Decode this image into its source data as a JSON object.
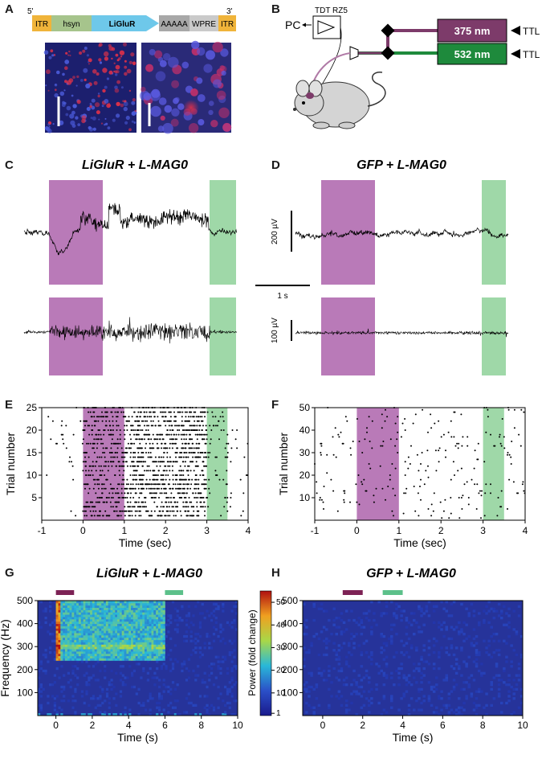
{
  "panel_labels": [
    "A",
    "B",
    "C",
    "D",
    "E",
    "F",
    "G",
    "H"
  ],
  "panel_a": {
    "construct": {
      "five_prime": "5'",
      "three_prime": "3'",
      "segments": [
        "ITR",
        "hsyn",
        "LiGluR",
        "AAAAA",
        "WPRE",
        "ITR"
      ]
    }
  },
  "panel_b": {
    "recorder_label": "TDT RZ5",
    "pc_label": "PC",
    "laser_violet": "375 nm",
    "laser_green": "532 nm",
    "trigger_label": "TTL",
    "colors": {
      "violet": "#7d3b6a",
      "green": "#1e8a3c"
    }
  },
  "panel_c": {
    "title": "LiGluR + L-MAG0"
  },
  "panel_d": {
    "title": "GFP + L-MAG0"
  },
  "scalebars": {
    "upper": "200 µV",
    "lower": "100 µV",
    "time": "1 s"
  },
  "chart_data": [
    {
      "id": "E",
      "type": "scatter",
      "title": "",
      "xlabel": "Time (sec)",
      "ylabel": "Trial number",
      "xlim": [
        -1,
        4
      ],
      "ylim": [
        0,
        25
      ],
      "xticks": [
        "-1",
        "0",
        "1",
        "2",
        "3",
        "4"
      ],
      "yticks": [
        "5",
        "10",
        "15",
        "20",
        "25"
      ],
      "xtick_values": [
        -1,
        0,
        1,
        2,
        3,
        4
      ],
      "ytick_values": [
        5,
        10,
        15,
        20,
        25
      ],
      "violet_window": [
        0,
        1
      ],
      "green_window": [
        3,
        3.5
      ],
      "trials": 25,
      "rates_hz": {
        "baseline": 1.2,
        "violet": 14,
        "after": 20,
        "green": 3,
        "post": 1.2
      }
    },
    {
      "id": "F",
      "type": "scatter",
      "title": "",
      "xlabel": "Time (sec)",
      "ylabel": "Trial number",
      "xlim": [
        -1,
        4
      ],
      "ylim": [
        0,
        50
      ],
      "xticks": [
        "-1",
        "0",
        "1",
        "2",
        "3",
        "4"
      ],
      "yticks": [
        "10",
        "20",
        "30",
        "40",
        "50"
      ],
      "xtick_values": [
        -1,
        0,
        1,
        2,
        3,
        4
      ],
      "ytick_values": [
        10,
        20,
        30,
        40,
        50
      ],
      "violet_window": [
        0,
        1
      ],
      "green_window": [
        3,
        3.5
      ],
      "trials": 50,
      "rates_hz": {
        "baseline": 1.0,
        "violet": 1.0,
        "after": 1.0,
        "green": 1.0,
        "post": 1.0
      }
    },
    {
      "id": "G",
      "type": "heatmap",
      "title": "LiGluR + L-MAG0",
      "xlabel": "Time (s)",
      "ylabel": "Frequency (Hz)",
      "xlim": [
        -1,
        10
      ],
      "ylim": [
        0,
        500
      ],
      "xticks": [
        "0",
        "2",
        "4",
        "6",
        "8",
        "10"
      ],
      "yticks": [
        "100",
        "200",
        "300",
        "400",
        "500"
      ],
      "xtick_values": [
        0,
        2,
        4,
        6,
        8,
        10
      ],
      "ytick_values": [
        100,
        200,
        300,
        400,
        500
      ],
      "violet_bar": [
        0,
        1
      ],
      "green_bar": [
        6,
        7
      ],
      "elevated_window": [
        0,
        6
      ],
      "elevated_band_hz": [
        240,
        500
      ],
      "colorbar": {
        "label": "Power (fold change)",
        "ticks": [
          "1",
          "10",
          "20",
          "30",
          "40",
          "50"
        ],
        "tick_values": [
          1,
          10,
          20,
          30,
          40,
          50
        ]
      }
    },
    {
      "id": "H",
      "type": "heatmap",
      "title": "GFP + L-MAG0",
      "xlabel": "Time (s)",
      "ylabel": "",
      "xlim": [
        -1,
        10
      ],
      "ylim": [
        0,
        500
      ],
      "xticks": [
        "0",
        "2",
        "4",
        "6",
        "8",
        "10"
      ],
      "yticks": [
        "100",
        "200",
        "300",
        "400",
        "500"
      ],
      "xtick_values": [
        0,
        2,
        4,
        6,
        8,
        10
      ],
      "ytick_values": [
        100,
        200,
        300,
        400,
        500
      ],
      "violet_bar": [
        1,
        2
      ],
      "green_bar": [
        3,
        4
      ],
      "elevated_window": [],
      "elevated_band_hz": []
    }
  ]
}
